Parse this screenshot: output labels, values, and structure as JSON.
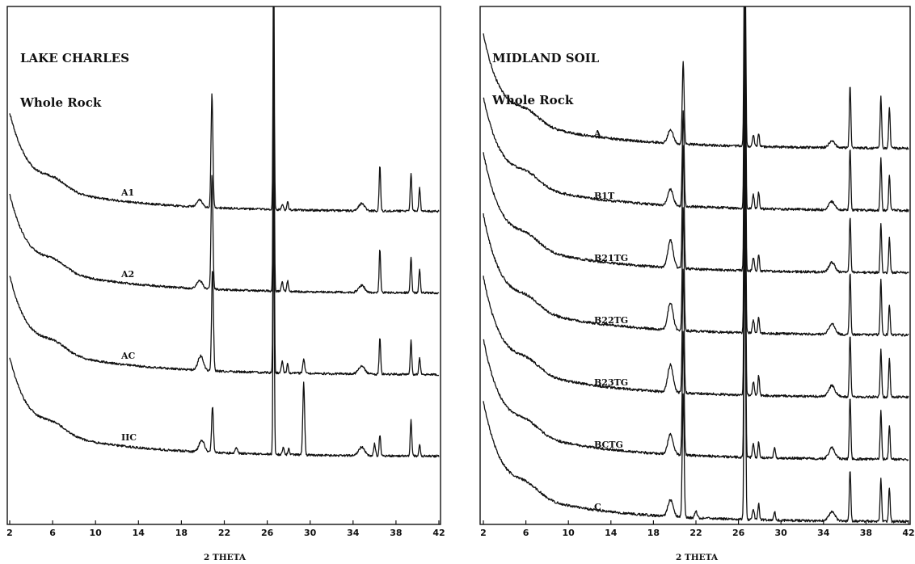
{
  "chart_data": [
    {
      "type": "line",
      "title": "LAKE CHARLES",
      "subtitle": "Whole Rock",
      "xlabel": "2 THETA",
      "ylabel": "",
      "xlim": [
        2,
        42
      ],
      "xticks": [
        2,
        6,
        10,
        14,
        18,
        22,
        26,
        30,
        34,
        38,
        42
      ],
      "grid": false,
      "series": [
        {
          "name": "A1",
          "baseline": 0,
          "low_angle": 0.55,
          "peaks": [
            [
              19.7,
              0.06,
              0.35
            ],
            [
              20.85,
              0.95,
              0.12
            ],
            [
              26.6,
              2.2,
              0.08
            ],
            [
              27.4,
              0.05,
              0.12
            ],
            [
              27.9,
              0.07,
              0.1
            ],
            [
              34.8,
              0.06,
              0.4
            ],
            [
              36.5,
              0.38,
              0.1
            ],
            [
              39.4,
              0.32,
              0.1
            ],
            [
              40.2,
              0.2,
              0.1
            ]
          ]
        },
        {
          "name": "A2",
          "baseline": 1,
          "low_angle": 0.55,
          "peaks": [
            [
              19.7,
              0.07,
              0.35
            ],
            [
              20.85,
              0.95,
              0.12
            ],
            [
              26.6,
              2.2,
              0.08
            ],
            [
              27.4,
              0.08,
              0.12
            ],
            [
              27.9,
              0.09,
              0.1
            ],
            [
              34.8,
              0.06,
              0.4
            ],
            [
              36.5,
              0.36,
              0.1
            ],
            [
              39.4,
              0.3,
              0.1
            ],
            [
              40.2,
              0.2,
              0.1
            ]
          ]
        },
        {
          "name": "AC",
          "baseline": 2,
          "low_angle": 0.55,
          "peaks": [
            [
              19.8,
              0.12,
              0.35
            ],
            [
              20.9,
              0.85,
              0.12
            ],
            [
              26.6,
              2.2,
              0.08
            ],
            [
              27.4,
              0.1,
              0.12
            ],
            [
              27.9,
              0.08,
              0.1
            ],
            [
              29.4,
              0.12,
              0.12
            ],
            [
              34.8,
              0.07,
              0.4
            ],
            [
              36.5,
              0.3,
              0.1
            ],
            [
              39.4,
              0.28,
              0.1
            ],
            [
              40.2,
              0.14,
              0.1
            ]
          ]
        },
        {
          "name": "IIC",
          "baseline": 3,
          "low_angle": 0.55,
          "peaks": [
            [
              19.9,
              0.1,
              0.35
            ],
            [
              20.9,
              0.38,
              0.12
            ],
            [
              23.1,
              0.05,
              0.15
            ],
            [
              26.6,
              2.2,
              0.08
            ],
            [
              27.5,
              0.06,
              0.12
            ],
            [
              28.0,
              0.05,
              0.1
            ],
            [
              29.4,
              0.6,
              0.12
            ],
            [
              34.8,
              0.07,
              0.4
            ],
            [
              36.0,
              0.1,
              0.12
            ],
            [
              36.5,
              0.18,
              0.1
            ],
            [
              39.4,
              0.3,
              0.1
            ],
            [
              40.2,
              0.1,
              0.1
            ]
          ]
        }
      ],
      "sample_labels": [
        "A1",
        "A2",
        "AC",
        "IIC"
      ]
    },
    {
      "type": "line",
      "title": "MIDLAND SOIL",
      "subtitle": "Whole Rock",
      "xlabel": "2 THETA",
      "ylabel": "",
      "xlim": [
        2,
        42
      ],
      "xticks": [
        2,
        6,
        10,
        14,
        18,
        22,
        26,
        30,
        34,
        38,
        42
      ],
      "grid": false,
      "series": [
        {
          "name": "A",
          "baseline": 0,
          "low_angle": 0.55,
          "peaks": [
            [
              19.6,
              0.1,
              0.35
            ],
            [
              20.8,
              0.6,
              0.12
            ],
            [
              26.6,
              2.2,
              0.1
            ],
            [
              27.4,
              0.08,
              0.12
            ],
            [
              27.9,
              0.1,
              0.1
            ],
            [
              34.8,
              0.05,
              0.4
            ],
            [
              36.5,
              0.45,
              0.1
            ],
            [
              39.4,
              0.38,
              0.1
            ],
            [
              40.2,
              0.3,
              0.1
            ]
          ]
        },
        {
          "name": "B1T",
          "baseline": 1,
          "low_angle": 0.55,
          "peaks": [
            [
              19.6,
              0.12,
              0.35
            ],
            [
              20.8,
              0.7,
              0.12
            ],
            [
              26.6,
              2.2,
              0.1
            ],
            [
              27.4,
              0.1,
              0.12
            ],
            [
              27.9,
              0.12,
              0.1
            ],
            [
              34.8,
              0.06,
              0.4
            ],
            [
              36.5,
              0.45,
              0.1
            ],
            [
              39.4,
              0.38,
              0.1
            ],
            [
              40.2,
              0.25,
              0.1
            ]
          ]
        },
        {
          "name": "B21TG",
          "baseline": 2,
          "low_angle": 0.6,
          "peaks": [
            [
              19.6,
              0.2,
              0.35
            ],
            [
              20.8,
              0.9,
              0.12
            ],
            [
              26.6,
              2.2,
              0.1
            ],
            [
              27.4,
              0.1,
              0.12
            ],
            [
              27.9,
              0.12,
              0.1
            ],
            [
              34.8,
              0.07,
              0.4
            ],
            [
              36.5,
              0.4,
              0.1
            ],
            [
              39.4,
              0.35,
              0.1
            ],
            [
              40.2,
              0.25,
              0.1
            ]
          ]
        },
        {
          "name": "B22TG",
          "baseline": 3,
          "low_angle": 0.6,
          "peaks": [
            [
              19.6,
              0.2,
              0.35
            ],
            [
              20.8,
              0.9,
              0.12
            ],
            [
              26.6,
              2.2,
              0.1
            ],
            [
              27.4,
              0.1,
              0.12
            ],
            [
              27.9,
              0.12,
              0.1
            ],
            [
              34.8,
              0.08,
              0.4
            ],
            [
              36.5,
              0.45,
              0.1
            ],
            [
              39.4,
              0.4,
              0.1
            ],
            [
              40.2,
              0.22,
              0.1
            ]
          ]
        },
        {
          "name": "B23TG",
          "baseline": 4,
          "low_angle": 0.6,
          "peaks": [
            [
              19.6,
              0.2,
              0.35
            ],
            [
              20.8,
              0.9,
              0.12
            ],
            [
              26.6,
              2.2,
              0.1
            ],
            [
              27.4,
              0.1,
              0.12
            ],
            [
              27.9,
              0.15,
              0.1
            ],
            [
              34.8,
              0.08,
              0.4
            ],
            [
              36.5,
              0.45,
              0.1
            ],
            [
              39.4,
              0.35,
              0.1
            ],
            [
              40.2,
              0.28,
              0.1
            ]
          ]
        },
        {
          "name": "BCTG",
          "baseline": 5,
          "low_angle": 0.6,
          "peaks": [
            [
              19.6,
              0.15,
              0.35
            ],
            [
              20.8,
              0.9,
              0.12
            ],
            [
              26.6,
              2.2,
              0.1
            ],
            [
              27.4,
              0.1,
              0.12
            ],
            [
              27.9,
              0.12,
              0.1
            ],
            [
              29.4,
              0.08,
              0.12
            ],
            [
              34.8,
              0.08,
              0.4
            ],
            [
              36.5,
              0.45,
              0.1
            ],
            [
              39.4,
              0.35,
              0.1
            ],
            [
              40.2,
              0.25,
              0.1
            ]
          ]
        },
        {
          "name": "C",
          "baseline": 6,
          "low_angle": 0.6,
          "peaks": [
            [
              19.6,
              0.12,
              0.35
            ],
            [
              20.8,
              0.9,
              0.12
            ],
            [
              22.0,
              0.05,
              0.15
            ],
            [
              26.6,
              2.2,
              0.1
            ],
            [
              27.4,
              0.08,
              0.12
            ],
            [
              27.9,
              0.12,
              0.1
            ],
            [
              29.4,
              0.06,
              0.12
            ],
            [
              34.8,
              0.07,
              0.4
            ],
            [
              36.5,
              0.38,
              0.1
            ],
            [
              39.4,
              0.32,
              0.1
            ],
            [
              40.2,
              0.25,
              0.1
            ]
          ]
        }
      ],
      "sample_labels": [
        "A",
        "B1T",
        "B21TG",
        "B22TG",
        "B23TG",
        "BCTG",
        "C"
      ]
    }
  ]
}
